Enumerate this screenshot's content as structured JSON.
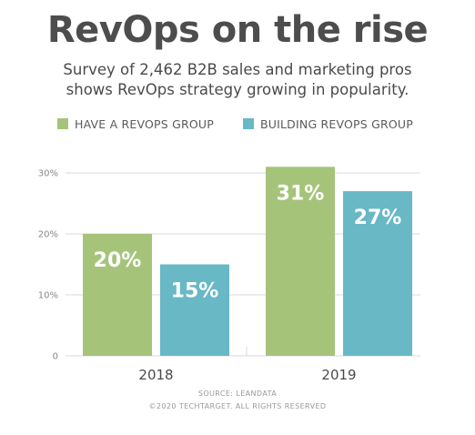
{
  "header": {
    "title": "RevOps on the rise",
    "subtitle_line1": "Survey of 2,462 B2B sales and marketing pros",
    "subtitle_line2": "shows RevOps strategy growing in popularity."
  },
  "footer": {
    "source": "SOURCE: LEANDATA",
    "copyright": "©2020 TECHTARGET. ALL RIGHTS RESERVED"
  },
  "colors": {
    "green": "#a5c47a",
    "teal": "#68b8c6",
    "grid": "#d9d9d9",
    "axis_text": "#888888",
    "category_text": "#4a4a4a",
    "value_label": "#ffffff"
  },
  "chart_data": {
    "type": "bar",
    "categories": [
      "2018",
      "2019"
    ],
    "series": [
      {
        "name": "HAVE A REVOPS GROUP",
        "values": [
          20,
          31
        ],
        "labels": [
          "20%",
          "31%"
        ]
      },
      {
        "name": "BUILDING REVOPS GROUP",
        "values": [
          15,
          27
        ],
        "labels": [
          "15%",
          "27%"
        ]
      }
    ],
    "y_ticks": [
      0,
      10,
      20,
      30
    ],
    "y_tick_labels": [
      "0",
      "10%",
      "20%",
      "30%"
    ],
    "ylim": [
      0,
      30
    ],
    "grid": true,
    "legend_position": "top"
  }
}
